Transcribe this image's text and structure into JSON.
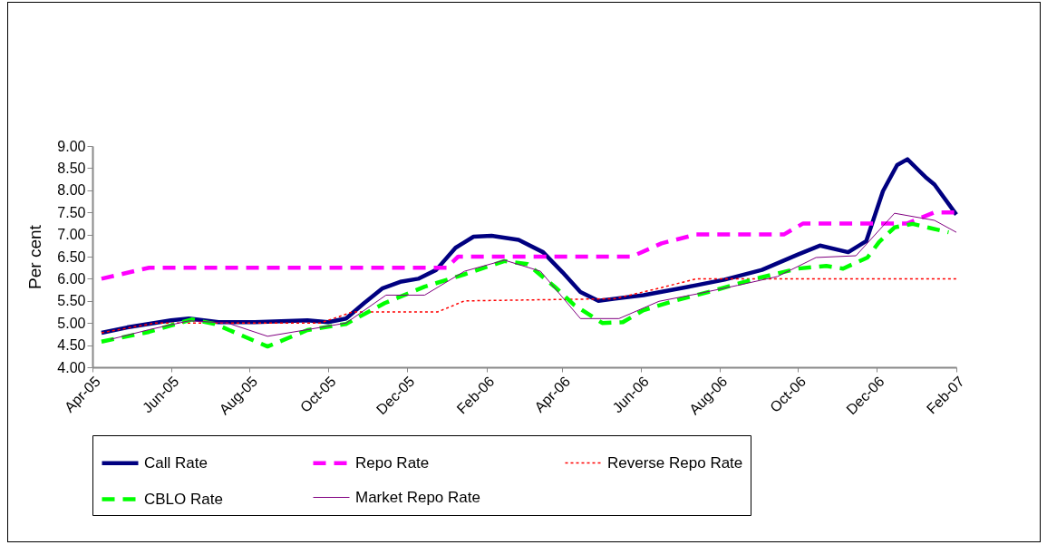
{
  "chart_data": {
    "type": "line",
    "ylabel": "Per cent",
    "xlim": [
      "2005-04",
      "2007-02"
    ],
    "xticks": [
      {
        "value": "2005-04",
        "label": "Apr-05"
      },
      {
        "value": "2005-06",
        "label": "Jun-05"
      },
      {
        "value": "2005-08",
        "label": "Aug-05"
      },
      {
        "value": "2005-10",
        "label": "Oct-05"
      },
      {
        "value": "2005-12",
        "label": "Dec-05"
      },
      {
        "value": "2006-02",
        "label": "Feb-06"
      },
      {
        "value": "2006-04",
        "label": "Apr-06"
      },
      {
        "value": "2006-06",
        "label": "Jun-06"
      },
      {
        "value": "2006-08",
        "label": "Aug-06"
      },
      {
        "value": "2006-10",
        "label": "Oct-06"
      },
      {
        "value": "2006-12",
        "label": "Dec-06"
      },
      {
        "value": "2007-02",
        "label": "Feb-07"
      }
    ],
    "ylim": [
      4,
      9
    ],
    "yticks": [
      {
        "value": 4,
        "label": "4.00"
      },
      {
        "value": 4.5,
        "label": "4.50"
      },
      {
        "value": 5,
        "label": "5.00"
      },
      {
        "value": 5.5,
        "label": "5.50"
      },
      {
        "value": 6,
        "label": "6.00"
      },
      {
        "value": 6.5,
        "label": "6.50"
      },
      {
        "value": 7,
        "label": "7.00"
      },
      {
        "value": 7.5,
        "label": "7.50"
      },
      {
        "value": 8,
        "label": "8.00"
      },
      {
        "value": 8.5,
        "label": "8.50"
      },
      {
        "value": 9,
        "label": "9.00"
      }
    ],
    "grid": false,
    "legend": "bottom",
    "marker": "none",
    "series": [
      {
        "name": "Call Rate",
        "color": "#000080",
        "line_style": "solid",
        "x": [
          "2005-04-08",
          "2005-04-28",
          "2005-06-01",
          "2005-06-15",
          "2005-07-08",
          "2005-08-05",
          "2005-09-15",
          "2005-10-01",
          "2005-10-15",
          "2005-10-29",
          "2005-11-12",
          "2005-11-26",
          "2005-12-10",
          "2005-12-24",
          "2006-01-08",
          "2006-01-22",
          "2006-02-05",
          "2006-02-26",
          "2006-03-17",
          "2006-04-01",
          "2006-04-15",
          "2006-04-29",
          "2006-05-12",
          "2006-06-03",
          "2006-07-08",
          "2006-08-05",
          "2006-09-03",
          "2006-10-01",
          "2006-10-18",
          "2006-11-09",
          "2006-11-23",
          "2006-12-06",
          "2006-12-17",
          "2006-12-25",
          "2007-01-08",
          "2007-01-15",
          "2007-02-01"
        ],
        "values": [
          4.78,
          4.9,
          5.06,
          5.1,
          5.02,
          5.02,
          5.06,
          5.02,
          5.1,
          5.45,
          5.78,
          5.93,
          6.0,
          6.2,
          6.7,
          6.95,
          6.97,
          6.88,
          6.6,
          6.15,
          5.7,
          5.5,
          5.55,
          5.63,
          5.82,
          5.98,
          6.2,
          6.55,
          6.75,
          6.6,
          6.85,
          7.98,
          8.57,
          8.7,
          8.3,
          8.13,
          7.45
        ]
      },
      {
        "name": "Repo Rate",
        "color": "#ff00ff",
        "line_style": "dashed",
        "x": [
          "2005-04-08",
          "2005-05-15",
          "2006-01-01",
          "2006-01-10",
          "2006-05-25",
          "2006-06-17",
          "2006-07-14",
          "2006-09-20",
          "2006-10-05",
          "2006-12-25",
          "2007-01-15",
          "2007-02-01"
        ],
        "values": [
          6.0,
          6.25,
          6.25,
          6.5,
          6.5,
          6.8,
          7.0,
          7.0,
          7.25,
          7.25,
          7.5,
          7.5
        ]
      },
      {
        "name": "Reverse Repo Rate",
        "color": "#ff0000",
        "line_style": "dotted",
        "x": [
          "2005-04-08",
          "2005-05-20",
          "2005-09-25",
          "2005-10-20",
          "2005-12-25",
          "2006-01-15",
          "2006-05-12",
          "2006-06-17",
          "2006-07-14",
          "2007-02-01"
        ],
        "values": [
          4.78,
          5.0,
          5.0,
          5.25,
          5.25,
          5.5,
          5.55,
          5.8,
          6.0,
          6.0
        ]
      },
      {
        "name": "CBLO Rate",
        "color": "#00ff00",
        "line_style": "dashed",
        "x": [
          "2005-04-08",
          "2005-05-15",
          "2005-06-17",
          "2005-07-05",
          "2005-08-15",
          "2005-09-15",
          "2005-10-15",
          "2005-11-14",
          "2005-12-15",
          "2006-01-15",
          "2006-02-15",
          "2006-03-05",
          "2006-03-26",
          "2006-04-10",
          "2006-05-02",
          "2006-05-18",
          "2006-06-03",
          "2006-06-28",
          "2006-07-26",
          "2006-09-02",
          "2006-10-01",
          "2006-10-23",
          "2006-11-05",
          "2006-11-24",
          "2006-12-03",
          "2006-12-15",
          "2006-12-29",
          "2007-01-26"
        ],
        "values": [
          4.58,
          4.8,
          5.08,
          4.98,
          4.47,
          4.84,
          4.98,
          5.45,
          5.82,
          6.1,
          6.4,
          6.33,
          5.82,
          5.41,
          5.0,
          5.02,
          5.29,
          5.51,
          5.72,
          6.03,
          6.23,
          6.29,
          6.23,
          6.48,
          6.83,
          7.16,
          7.24,
          7.05
        ]
      },
      {
        "name": "Market Repo Rate",
        "color": "#800080",
        "line_style": "solid",
        "x": [
          "2005-04-15",
          "2005-05-15",
          "2005-06-15",
          "2005-07-15",
          "2005-08-15",
          "2005-09-15",
          "2005-10-15",
          "2005-11-15",
          "2005-12-15",
          "2006-01-15",
          "2006-02-15",
          "2006-03-15",
          "2006-04-15",
          "2006-05-15",
          "2006-06-15",
          "2006-07-15",
          "2006-08-15",
          "2006-09-15",
          "2006-10-15",
          "2006-11-15",
          "2006-12-15",
          "2007-01-15",
          "2007-02-01"
        ],
        "values": [
          4.63,
          4.85,
          5.05,
          5.0,
          4.7,
          4.85,
          5.0,
          5.63,
          5.63,
          6.17,
          6.42,
          6.17,
          5.1,
          5.1,
          5.49,
          5.66,
          5.85,
          6.05,
          6.48,
          6.52,
          7.48,
          7.32,
          7.05
        ]
      }
    ]
  }
}
